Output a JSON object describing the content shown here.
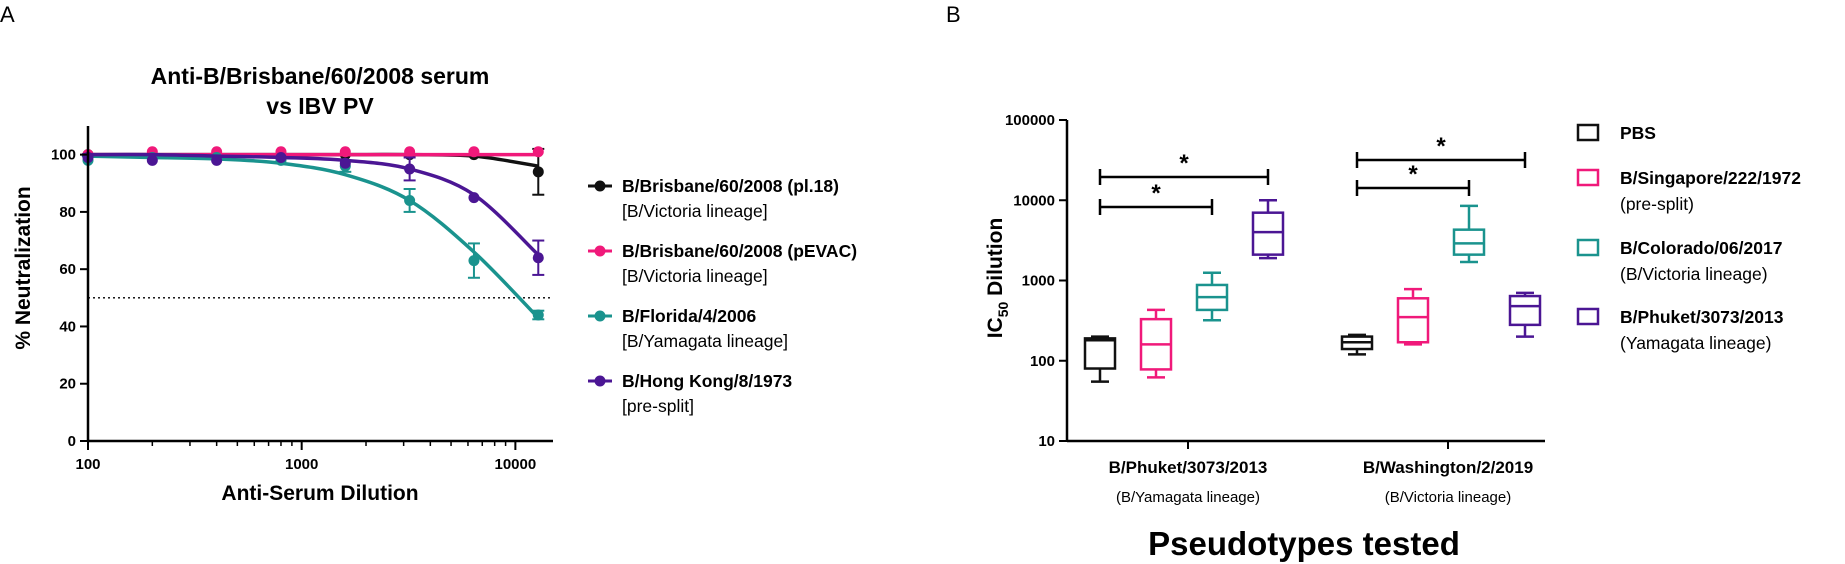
{
  "chart_data": [
    {
      "panel": "A",
      "type": "line",
      "title": [
        "Anti-B/Brisbane/60/2008 serum",
        "vs IBV PV"
      ],
      "xlabel": "Anti-Serum Dilution",
      "ylabel": "% Neutralization",
      "xscale": "log",
      "xlim": [
        100,
        15000
      ],
      "ylim": [
        0,
        110
      ],
      "xticks": [
        "100",
        "1000",
        "10000"
      ],
      "yticks": [
        "0",
        "20",
        "40",
        "60",
        "80",
        "100"
      ],
      "reference_line": {
        "y": 50,
        "style": "dotted"
      },
      "x": [
        100,
        200,
        400,
        800,
        1600,
        3200,
        6400,
        12800
      ],
      "series": [
        {
          "name": "B/Brisbane/60/2008 (pl.18)",
          "sub": "[B/Victoria lineage]",
          "color": "#111111",
          "values": [
            100,
            100,
            100,
            100,
            100,
            100,
            100,
            94
          ],
          "errors": [
            0,
            0,
            0,
            0,
            0,
            0,
            0,
            8
          ],
          "fit": [
            100,
            100,
            100,
            100,
            100,
            100,
            99.5,
            96
          ]
        },
        {
          "name": "B/Brisbane/60/2008 (pEVAC)",
          "sub": "[B/Victoria lineage]",
          "color": "#f0197a",
          "values": [
            100,
            101,
            101,
            101,
            101,
            101,
            101,
            101
          ],
          "errors": [
            0,
            0,
            0,
            0,
            0,
            0,
            0,
            0
          ],
          "fit": [
            100,
            100,
            100,
            100,
            100,
            100,
            100,
            100
          ]
        },
        {
          "name": "B/Florida/4/2006",
          "sub": "[B/Yamagata lineage]",
          "color": "#1a938e",
          "values": [
            98,
            99,
            99,
            98,
            96,
            84,
            63,
            44
          ],
          "errors": [
            0,
            0,
            0,
            0,
            2,
            4,
            6,
            1.5
          ],
          "fit": [
            99.5,
            99,
            98.5,
            97,
            93,
            84,
            66,
            43
          ]
        },
        {
          "name": "B/Hong Kong/8/1973",
          "sub": "[pre-split]",
          "color": "#4b1694",
          "values": [
            99,
            98,
            98,
            99,
            97,
            95,
            85,
            64
          ],
          "errors": [
            0,
            0,
            0,
            0,
            0,
            4,
            0,
            6
          ],
          "fit": [
            100,
            100,
            99.5,
            99,
            98,
            95,
            86,
            65
          ]
        }
      ]
    },
    {
      "panel": "B",
      "type": "box",
      "xlabel": "Pseudotypes tested",
      "ylabel": "IC50 Dilution",
      "yscale": "log",
      "ylim": [
        10,
        100000
      ],
      "yticks": [
        "10",
        "100",
        "1000",
        "10000",
        "100000"
      ],
      "groups": [
        {
          "label": "B/Phuket/3073/2013",
          "sub": "(B/Yamagata lineage)"
        },
        {
          "label": "B/Washington/2/2019",
          "sub": "(B/Victoria lineage)"
        }
      ],
      "series": [
        {
          "name": "PBS",
          "sub": "",
          "color": "#111111"
        },
        {
          "name": "B/Singapore/222/1972",
          "sub": "(pre-split)",
          "color": "#f0197a"
        },
        {
          "name": "B/Colorado/06/2017",
          "sub": "(B/Victoria lineage)",
          "color": "#1a938e"
        },
        {
          "name": "B/Phuket/3073/2013",
          "sub": "(Yamagata lineage)",
          "color": "#4b1694"
        }
      ],
      "boxes": [
        {
          "group": 0,
          "series": 0,
          "min": 55,
          "q1": 80,
          "median": 180,
          "q3": 190,
          "max": 200
        },
        {
          "group": 0,
          "series": 1,
          "min": 62,
          "q1": 78,
          "median": 160,
          "q3": 330,
          "max": 430
        },
        {
          "group": 0,
          "series": 2,
          "min": 320,
          "q1": 430,
          "median": 620,
          "q3": 880,
          "max": 1250
        },
        {
          "group": 0,
          "series": 3,
          "min": 1900,
          "q1": 2100,
          "median": 4000,
          "q3": 7000,
          "max": 10000
        },
        {
          "group": 1,
          "series": 0,
          "min": 120,
          "q1": 140,
          "median": 170,
          "q3": 200,
          "max": 210
        },
        {
          "group": 1,
          "series": 1,
          "min": 160,
          "q1": 170,
          "median": 350,
          "q3": 600,
          "max": 780
        },
        {
          "group": 1,
          "series": 2,
          "min": 1700,
          "q1": 2100,
          "median": 2900,
          "q3": 4300,
          "max": 8500
        },
        {
          "group": 1,
          "series": 3,
          "min": 200,
          "q1": 280,
          "median": 480,
          "q3": 640,
          "max": 700
        }
      ],
      "significance": [
        {
          "group": 0,
          "from": 0,
          "to": 3,
          "label": "*"
        },
        {
          "group": 0,
          "from": 0,
          "to": 2,
          "label": "*"
        },
        {
          "group": 1,
          "from": 0,
          "to": 3,
          "label": "*"
        },
        {
          "group": 1,
          "from": 0,
          "to": 2,
          "label": "*"
        }
      ]
    }
  ]
}
